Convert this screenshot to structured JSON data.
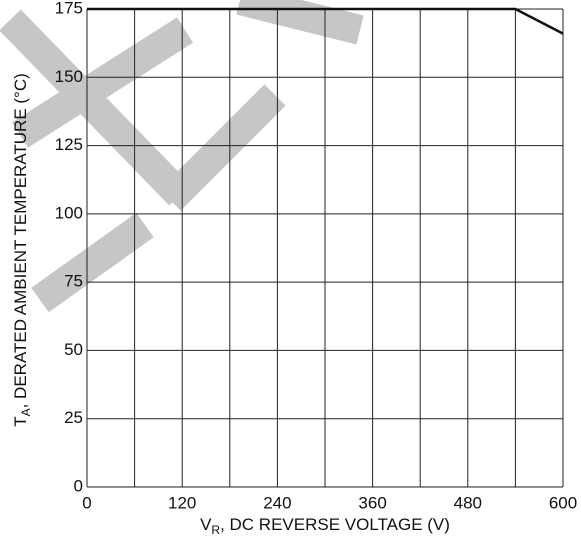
{
  "chart_data": {
    "type": "line",
    "y_label": {
      "main": "T",
      "sub": "A",
      "rest": ", DERATED AMBIENT TEMPERATURE (°C)"
    },
    "x_label": {
      "main": "V",
      "sub": "R",
      "rest": ", DC REVERSE VOLTAGE (V)"
    },
    "x": [
      0,
      540,
      600
    ],
    "series": [
      {
        "color": "#111111",
        "values": [
          175,
          175,
          166
        ]
      }
    ],
    "xlim": [
      0,
      600
    ],
    "ylim": [
      0,
      175
    ],
    "xticks": [
      0,
      120,
      240,
      360,
      480,
      600
    ],
    "xgrid": [
      0,
      60,
      120,
      180,
      240,
      300,
      360,
      420,
      480,
      540,
      600
    ],
    "yticks": [
      0,
      25,
      50,
      75,
      100,
      125,
      150,
      175
    ],
    "grid": true
  }
}
